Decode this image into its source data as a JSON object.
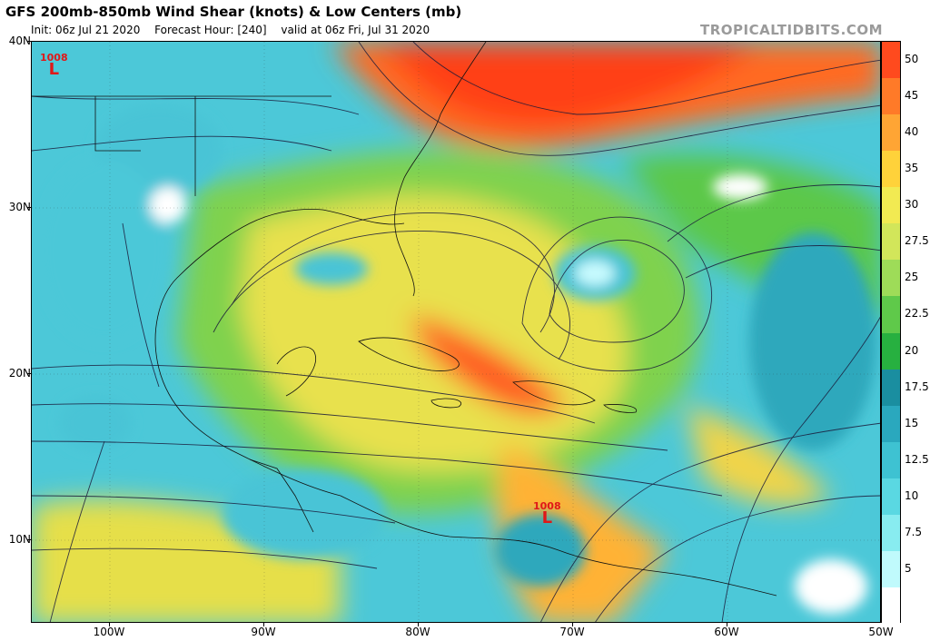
{
  "header": {
    "title": "GFS 200mb-850mb Wind Shear (knots) & Low Centers (mb)",
    "init": "Init: 06z Jul 21 2020",
    "forecast_hour": "Forecast Hour: [240]",
    "valid": "valid at 06z Fri, Jul 31 2020",
    "brand": "TROPICALTIDBITS.COM"
  },
  "axes": {
    "lat_labels": [
      "40N",
      "30N",
      "20N",
      "10N"
    ],
    "lon_labels": [
      "100W",
      "90W",
      "80W",
      "70W",
      "60W",
      "50W"
    ]
  },
  "colorbar": {
    "labels": [
      "50",
      "45",
      "40",
      "35",
      "30",
      "27.5",
      "25",
      "22.5",
      "20",
      "17.5",
      "15",
      "12.5",
      "10",
      "7.5",
      "5"
    ],
    "colors": [
      "#ff4a1e",
      "#ff7a28",
      "#ffa534",
      "#ffd23a",
      "#f2ea52",
      "#d2e65a",
      "#9edc58",
      "#5fc94a",
      "#27b040",
      "#1a8ea0",
      "#2aa8be",
      "#3ec2d2",
      "#5ad8e2",
      "#88ecf0",
      "#c0fafc",
      "#ffffff"
    ]
  },
  "lows": [
    {
      "pressure": "1008",
      "letter": "L"
    },
    {
      "pressure": "1008",
      "letter": "L"
    }
  ]
}
